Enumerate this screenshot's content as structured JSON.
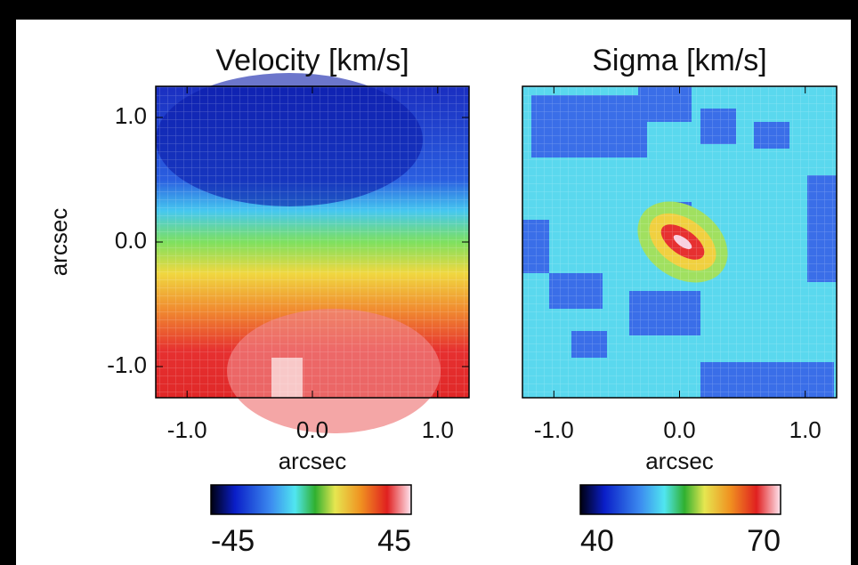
{
  "chart_data": [
    {
      "type": "image",
      "title": "Velocity [km/s]",
      "xlabel": "arcsec",
      "ylabel": "arcsec",
      "xlim": [
        -1.25,
        1.25
      ],
      "ylim": [
        -1.25,
        1.25
      ],
      "xticks": [
        {
          "value": -1,
          "label": "-1.0"
        },
        {
          "value": 0,
          "label": "0.0"
        },
        {
          "value": 1,
          "label": "1.0"
        }
      ],
      "yticks": [
        {
          "value": -1,
          "label": "-1.0"
        },
        {
          "value": 0,
          "label": "0.0"
        },
        {
          "value": 1,
          "label": "1.0"
        }
      ],
      "clim": [
        -45,
        45
      ],
      "cticks": [
        -45,
        45
      ]
    },
    {
      "type": "image",
      "title": "Sigma [km/s]",
      "xlabel": "arcsec",
      "xlim": [
        -1.25,
        1.25
      ],
      "ylim": [
        -1.25,
        1.25
      ],
      "xticks": [
        {
          "value": -1,
          "label": "-1.0"
        },
        {
          "value": 0,
          "label": "0.0"
        },
        {
          "value": 1,
          "label": "1.0"
        }
      ],
      "clim": [
        40,
        70
      ],
      "cticks": [
        40,
        70
      ]
    }
  ]
}
